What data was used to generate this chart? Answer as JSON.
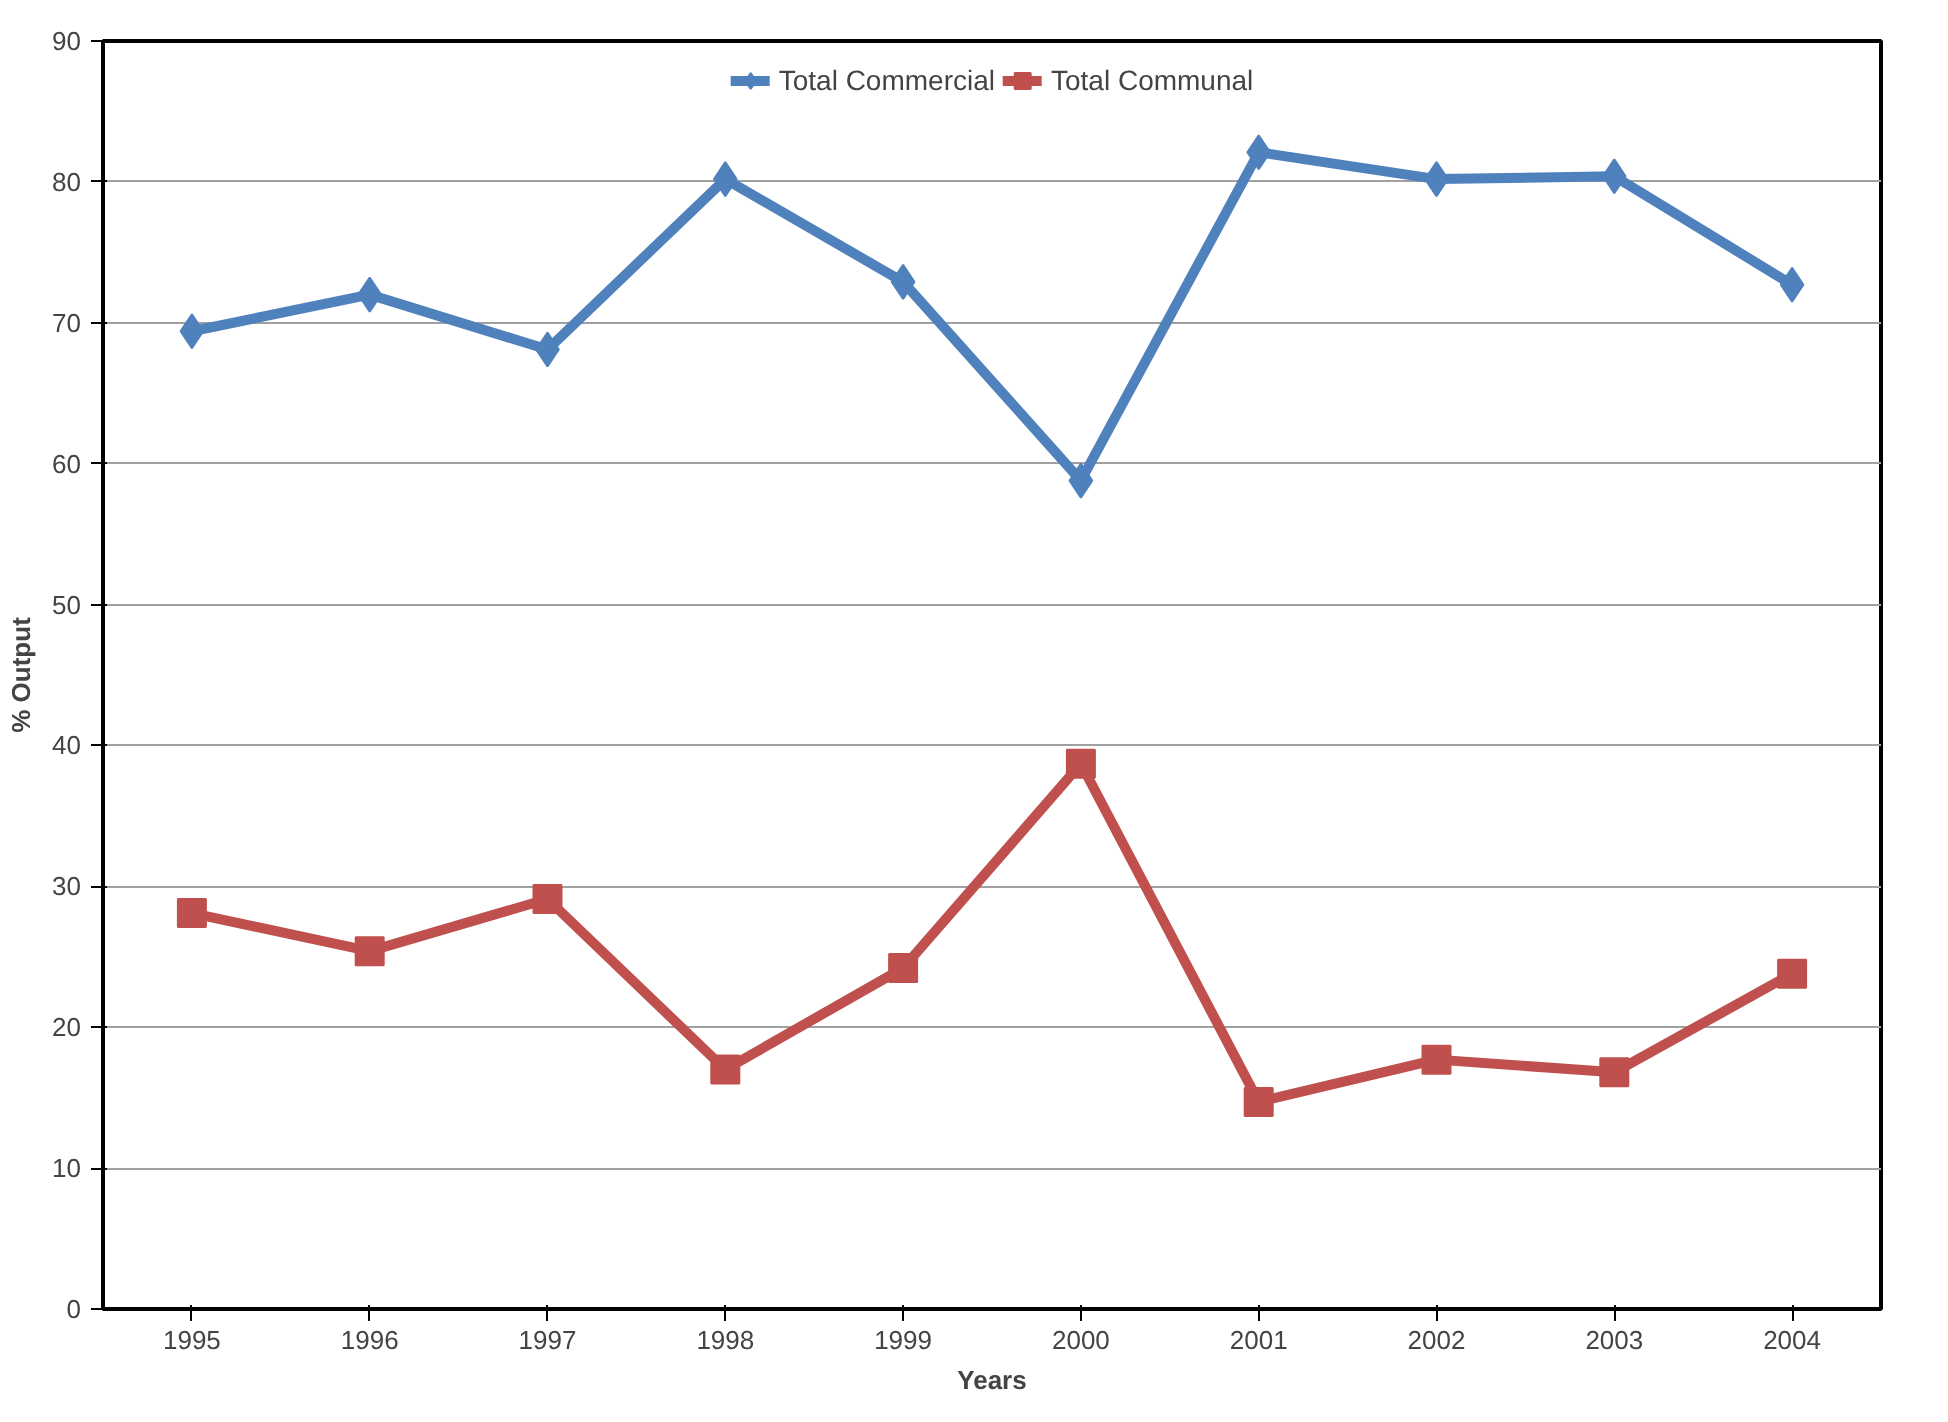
{
  "chart_data": {
    "type": "line",
    "xlabel": "Years",
    "ylabel": "% Output",
    "categories": [
      "1995",
      "1996",
      "1997",
      "1998",
      "1999",
      "2000",
      "2001",
      "2002",
      "2003",
      "2004"
    ],
    "series": [
      {
        "name": "Total Commercial",
        "color": "#4f81bd",
        "marker": "diamond",
        "values": [
          69.4,
          72.0,
          68.1,
          80.2,
          72.9,
          58.8,
          82.1,
          80.2,
          80.4,
          72.7
        ]
      },
      {
        "name": "Total Communal",
        "color": "#c0504d",
        "marker": "square",
        "values": [
          28.1,
          25.4,
          29.1,
          17.0,
          24.2,
          38.7,
          14.7,
          17.7,
          16.8,
          23.8
        ]
      }
    ],
    "ylim": [
      0,
      90
    ],
    "yticks": [
      0,
      10,
      20,
      30,
      40,
      50,
      60,
      70,
      80,
      90
    ],
    "grid": "y",
    "legend": "top"
  }
}
